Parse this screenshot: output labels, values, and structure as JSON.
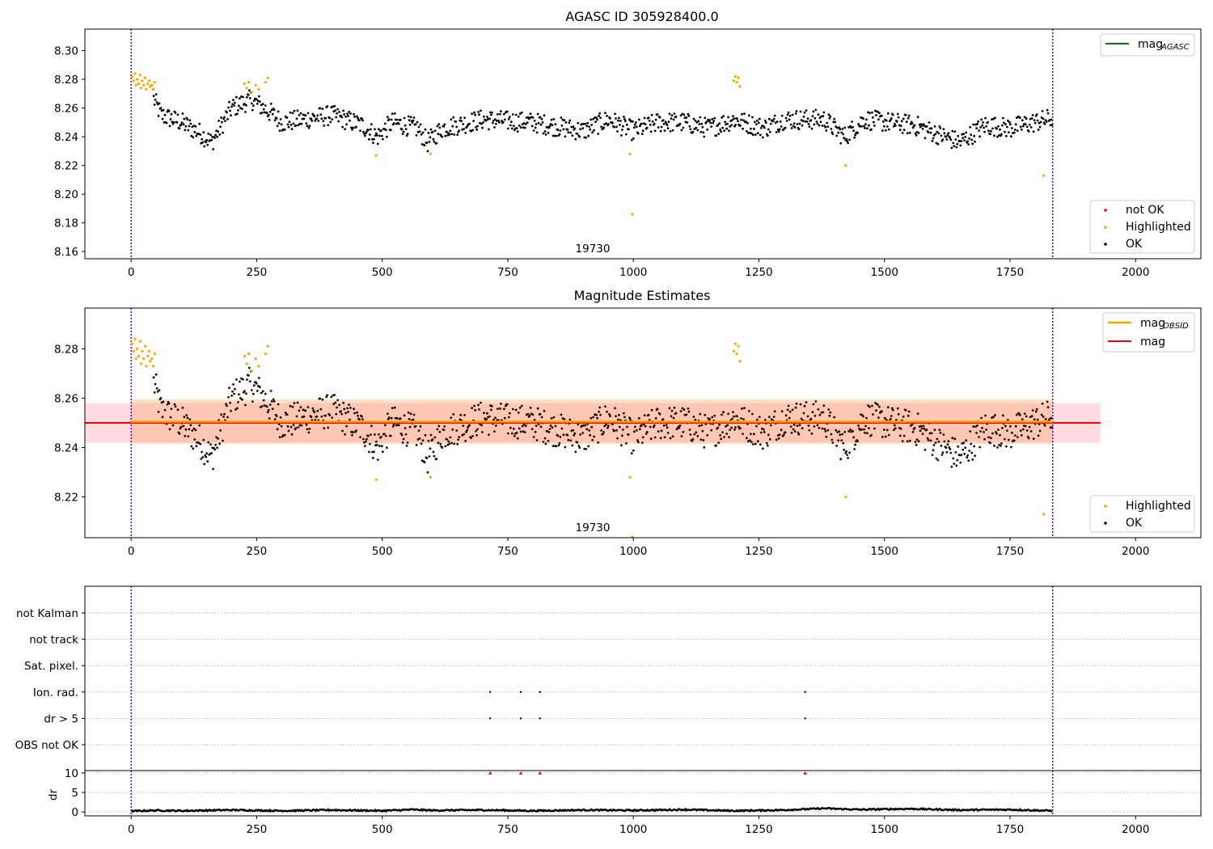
{
  "chart_data": [
    {
      "type": "scatter",
      "title": "AGASC ID 305928400.0",
      "annotation": "19730",
      "xlim": [
        -92,
        2130
      ],
      "ylim": [
        8.155,
        8.315
      ],
      "xticks": [
        0,
        250,
        500,
        750,
        1000,
        1250,
        1500,
        1750,
        2000
      ],
      "yticks": [
        8.16,
        8.18,
        8.2,
        8.22,
        8.24,
        8.26,
        8.28,
        8.3
      ],
      "vlines": [
        0,
        1835
      ],
      "legend_top": {
        "label": "mag",
        "sub": "AGASC",
        "color": "#008000"
      },
      "legend_bottom": [
        {
          "label": "not OK",
          "color": "#ff0000"
        },
        {
          "label": "Highlighted",
          "color": "#ffa500"
        },
        {
          "label": "OK",
          "color": "#000000"
        }
      ],
      "series": [
        {
          "name": "OK",
          "description": "dense black points, mag ~8.23-8.27 over time index 0-1835",
          "profile": [
            [
              0,
              8.275
            ],
            [
              40,
              8.27
            ],
            [
              60,
              8.255
            ],
            [
              100,
              8.25
            ],
            [
              140,
              8.242
            ],
            [
              160,
              8.236
            ],
            [
              180,
              8.248
            ],
            [
              200,
              8.26
            ],
            [
              240,
              8.266
            ],
            [
              280,
              8.256
            ],
            [
              300,
              8.25
            ],
            [
              400,
              8.255
            ],
            [
              460,
              8.248
            ],
            [
              490,
              8.24
            ],
            [
              520,
              8.25
            ],
            [
              570,
              8.246
            ],
            [
              590,
              8.236
            ],
            [
              620,
              8.246
            ],
            [
              700,
              8.252
            ],
            [
              800,
              8.25
            ],
            [
              900,
              8.244
            ],
            [
              950,
              8.252
            ],
            [
              1000,
              8.244
            ],
            [
              1050,
              8.25
            ],
            [
              1100,
              8.25
            ],
            [
              1150,
              8.246
            ],
            [
              1200,
              8.252
            ],
            [
              1260,
              8.246
            ],
            [
              1300,
              8.252
            ],
            [
              1380,
              8.252
            ],
            [
              1420,
              8.24
            ],
            [
              1460,
              8.252
            ],
            [
              1560,
              8.248
            ],
            [
              1620,
              8.24
            ],
            [
              1650,
              8.236
            ],
            [
              1700,
              8.248
            ],
            [
              1750,
              8.246
            ],
            [
              1835,
              8.253
            ]
          ]
        },
        {
          "name": "Highlighted",
          "description": "orange points",
          "points": [
            [
              2,
              8.282
            ],
            [
              5,
              8.279
            ],
            [
              8,
              8.284
            ],
            [
              10,
              8.276
            ],
            [
              12,
              8.28
            ],
            [
              15,
              8.277
            ],
            [
              18,
              8.283
            ],
            [
              20,
              8.274
            ],
            [
              22,
              8.279
            ],
            [
              25,
              8.276
            ],
            [
              28,
              8.281
            ],
            [
              30,
              8.273
            ],
            [
              33,
              8.277
            ],
            [
              36,
              8.279
            ],
            [
              38,
              8.275
            ],
            [
              41,
              8.276
            ],
            [
              44,
              8.273
            ],
            [
              47,
              8.278
            ],
            [
              226,
              8.277
            ],
            [
              230,
              8.274
            ],
            [
              234,
              8.278
            ],
            [
              240,
              8.271
            ],
            [
              248,
              8.276
            ],
            [
              254,
              8.273
            ],
            [
              268,
              8.278
            ],
            [
              272,
              8.281
            ],
            [
              1200,
              8.279
            ],
            [
              1203,
              8.282
            ],
            [
              1206,
              8.278
            ],
            [
              1209,
              8.281
            ],
            [
              1212,
              8.275
            ],
            [
              488,
              8.227
            ],
            [
              596,
              8.228
            ],
            [
              993,
              8.228
            ],
            [
              998,
              8.186
            ],
            [
              1423,
              8.22
            ],
            [
              1817,
              8.213
            ]
          ]
        }
      ]
    },
    {
      "type": "scatter",
      "title": "Magnitude Estimates",
      "annotation": "19730",
      "xlim": [
        -92,
        2130
      ],
      "ylim": [
        8.2035,
        8.2965
      ],
      "xticks": [
        0,
        250,
        500,
        750,
        1000,
        1250,
        1500,
        1750,
        2000
      ],
      "yticks": [
        8.22,
        8.24,
        8.26,
        8.28
      ],
      "vlines": [
        0,
        1835
      ],
      "mag": 8.25,
      "mag_band": [
        8.242,
        8.258
      ],
      "mag_band_x": [
        -92,
        1930
      ],
      "mag_obsid": 8.2505,
      "mag_obsid_band": [
        8.2415,
        8.2595
      ],
      "mag_obsid_x": [
        0,
        1835
      ],
      "legend_top": [
        {
          "label": "mag",
          "sub": "OBSID",
          "color": "#ffa500"
        },
        {
          "label": "mag",
          "sub": "",
          "color": "#ff0000"
        }
      ],
      "legend_bottom": [
        {
          "label": "Highlighted",
          "color": "#ffa500"
        },
        {
          "label": "OK",
          "color": "#000000"
        }
      ]
    },
    {
      "type": "scatter",
      "title": "",
      "xlim": [
        -92,
        2130
      ],
      "xticks": [
        0,
        250,
        500,
        750,
        1000,
        1250,
        1500,
        1750,
        2000
      ],
      "vlines": [
        0,
        1835
      ],
      "flag_rows": [
        "not Kalman",
        "not track",
        "Sat. pixel.",
        "Ion. rad.",
        "dr > 5",
        "OBS not OK"
      ],
      "flag_points": [
        {
          "row": "Ion. rad.",
          "x": [
            715,
            776,
            814,
            1342
          ]
        },
        {
          "row": "dr > 5",
          "x": [
            715,
            776,
            814,
            1342
          ]
        }
      ],
      "dr_axis": {
        "label": "dr",
        "ylim": [
          -1,
          10.6
        ],
        "yticks": [
          0,
          5,
          10
        ]
      },
      "dr_clipped_points": {
        "x": [
          715,
          776,
          814,
          1342
        ],
        "y": 10,
        "color": "#ff0000"
      },
      "dr_profile": [
        [
          0,
          0.2
        ],
        [
          50,
          0.4
        ],
        [
          100,
          0.3
        ],
        [
          200,
          0.5
        ],
        [
          300,
          0.3
        ],
        [
          400,
          0.5
        ],
        [
          500,
          0.3
        ],
        [
          560,
          0.6
        ],
        [
          600,
          0.4
        ],
        [
          700,
          0.5
        ],
        [
          800,
          0.3
        ],
        [
          900,
          0.5
        ],
        [
          1000,
          0.4
        ],
        [
          1100,
          0.6
        ],
        [
          1200,
          0.3
        ],
        [
          1300,
          0.5
        ],
        [
          1380,
          0.9
        ],
        [
          1450,
          0.6
        ],
        [
          1550,
          0.8
        ],
        [
          1650,
          0.5
        ],
        [
          1750,
          0.6
        ],
        [
          1835,
          0.3
        ]
      ]
    }
  ]
}
